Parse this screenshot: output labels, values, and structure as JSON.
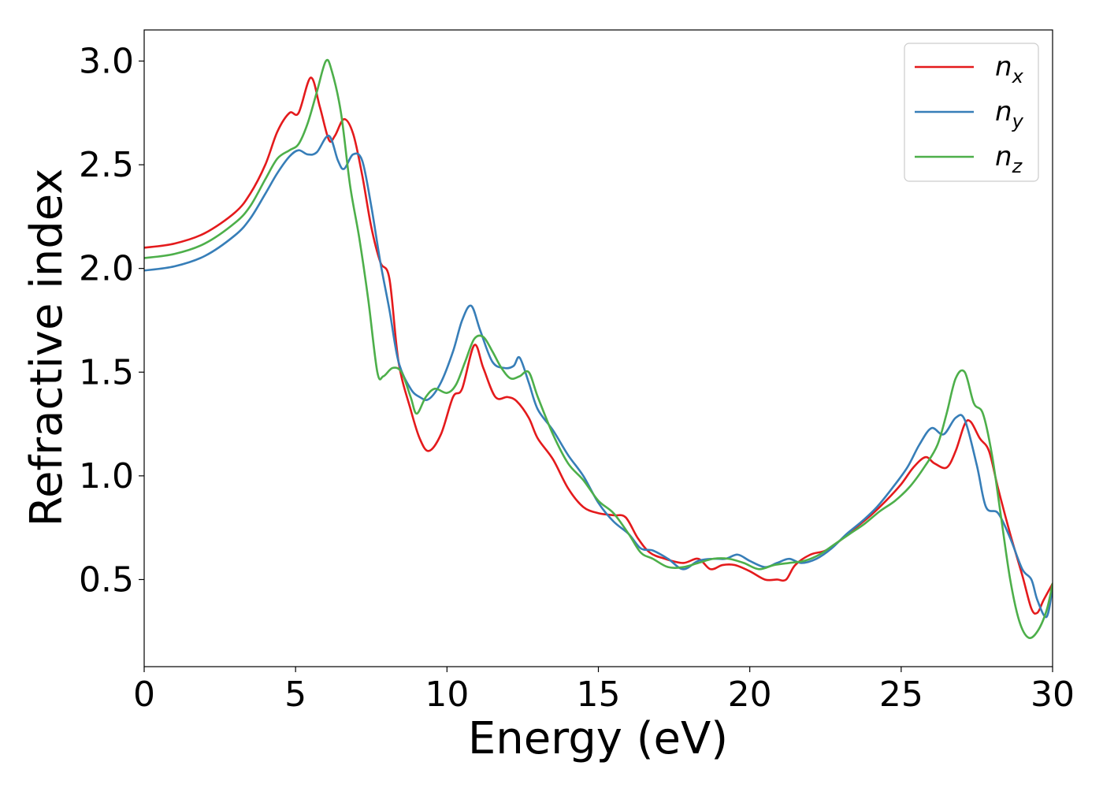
{
  "chart_data": {
    "type": "line",
    "xlabel": "Energy (eV)",
    "ylabel": "Refractive index",
    "xlim": [
      0,
      30
    ],
    "ylim": [
      0.08,
      3.15
    ],
    "xticks": [
      0,
      5,
      10,
      15,
      20,
      25,
      30
    ],
    "xtick_labels": [
      "0",
      "5",
      "10",
      "15",
      "20",
      "25",
      "30"
    ],
    "yticks": [
      0.5,
      1.0,
      1.5,
      2.0,
      2.5,
      3.0
    ],
    "ytick_labels": [
      "0.5",
      "1.0",
      "1.5",
      "2.0",
      "2.5",
      "3.0"
    ],
    "grid": false,
    "legend_position": "top-right",
    "series": [
      {
        "name": "n",
        "subscript": "x",
        "color": "#e41a1c",
        "x": [
          0,
          1,
          2,
          3,
          3.5,
          4,
          4.4,
          4.8,
          5.1,
          5.5,
          5.8,
          6.1,
          6.3,
          6.6,
          6.9,
          7.2,
          7.5,
          7.8,
          8.1,
          8.4,
          8.8,
          9.1,
          9.4,
          9.8,
          10.2,
          10.5,
          10.9,
          11.2,
          11.6,
          12.0,
          12.3,
          12.7,
          13.0,
          13.5,
          14.0,
          14.5,
          15.0,
          15.5,
          15.9,
          16.3,
          16.7,
          17.2,
          17.8,
          18.3,
          18.7,
          19.1,
          19.5,
          20.0,
          20.5,
          20.9,
          21.2,
          21.5,
          22.0,
          22.5,
          23.0,
          23.5,
          24.0,
          24.5,
          25.0,
          25.4,
          25.8,
          26.1,
          26.5,
          26.8,
          27.1,
          27.3,
          27.6,
          27.9,
          28.2,
          28.6,
          29.0,
          29.3,
          29.5,
          29.7,
          30.0
        ],
        "y": [
          2.1,
          2.12,
          2.17,
          2.27,
          2.36,
          2.5,
          2.66,
          2.75,
          2.75,
          2.92,
          2.78,
          2.62,
          2.64,
          2.72,
          2.65,
          2.45,
          2.2,
          2.03,
          1.95,
          1.55,
          1.32,
          1.18,
          1.12,
          1.2,
          1.38,
          1.42,
          1.63,
          1.52,
          1.38,
          1.38,
          1.36,
          1.28,
          1.18,
          1.08,
          0.94,
          0.85,
          0.82,
          0.81,
          0.8,
          0.7,
          0.63,
          0.6,
          0.58,
          0.6,
          0.55,
          0.57,
          0.57,
          0.54,
          0.5,
          0.5,
          0.5,
          0.57,
          0.62,
          0.64,
          0.69,
          0.75,
          0.81,
          0.88,
          0.96,
          1.04,
          1.09,
          1.06,
          1.04,
          1.12,
          1.25,
          1.26,
          1.18,
          1.12,
          0.94,
          0.72,
          0.52,
          0.36,
          0.34,
          0.4,
          0.48
        ]
      },
      {
        "name": "n",
        "subscript": "y",
        "color": "#377eb8",
        "x": [
          0,
          1,
          2,
          3,
          3.5,
          4,
          4.4,
          4.8,
          5.1,
          5.4,
          5.7,
          6.1,
          6.4,
          6.6,
          6.9,
          7.2,
          7.5,
          7.8,
          8.1,
          8.4,
          8.8,
          9.1,
          9.4,
          9.8,
          10.2,
          10.5,
          10.8,
          11.1,
          11.5,
          11.9,
          12.2,
          12.4,
          12.7,
          13.0,
          13.5,
          14.0,
          14.5,
          15.0,
          15.5,
          16.0,
          16.4,
          16.8,
          17.3,
          17.8,
          18.3,
          18.8,
          19.2,
          19.6,
          20.0,
          20.5,
          20.9,
          21.3,
          21.7,
          22.2,
          22.7,
          23.2,
          23.7,
          24.2,
          24.7,
          25.2,
          25.6,
          26.0,
          26.4,
          26.8,
          27.1,
          27.5,
          27.8,
          28.2,
          28.6,
          29.0,
          29.3,
          29.5,
          29.8,
          30.0
        ],
        "y": [
          1.99,
          2.01,
          2.06,
          2.16,
          2.24,
          2.36,
          2.46,
          2.54,
          2.57,
          2.55,
          2.56,
          2.64,
          2.52,
          2.48,
          2.55,
          2.52,
          2.3,
          2.03,
          1.8,
          1.55,
          1.42,
          1.38,
          1.37,
          1.45,
          1.6,
          1.75,
          1.82,
          1.7,
          1.55,
          1.52,
          1.53,
          1.57,
          1.45,
          1.32,
          1.22,
          1.1,
          1.0,
          0.87,
          0.78,
          0.72,
          0.65,
          0.64,
          0.6,
          0.55,
          0.59,
          0.6,
          0.6,
          0.62,
          0.59,
          0.56,
          0.58,
          0.6,
          0.58,
          0.6,
          0.65,
          0.72,
          0.78,
          0.85,
          0.94,
          1.04,
          1.15,
          1.23,
          1.2,
          1.28,
          1.27,
          1.05,
          0.85,
          0.82,
          0.7,
          0.55,
          0.5,
          0.4,
          0.32,
          0.46
        ]
      },
      {
        "name": "n",
        "subscript": "z",
        "color": "#4daf4a",
        "x": [
          0,
          1,
          2,
          3,
          3.5,
          4,
          4.4,
          4.8,
          5.1,
          5.4,
          5.7,
          6.0,
          6.2,
          6.5,
          6.8,
          7.1,
          7.4,
          7.7,
          7.9,
          8.2,
          8.5,
          8.8,
          9.0,
          9.3,
          9.6,
          10.0,
          10.3,
          10.6,
          10.9,
          11.2,
          11.5,
          11.8,
          12.1,
          12.4,
          12.7,
          13.0,
          13.5,
          14.0,
          14.5,
          15.0,
          15.5,
          16.0,
          16.4,
          16.8,
          17.3,
          17.8,
          18.3,
          18.8,
          19.3,
          19.8,
          20.3,
          20.8,
          21.3,
          21.8,
          22.3,
          22.8,
          23.3,
          23.8,
          24.3,
          24.8,
          25.3,
          25.8,
          26.2,
          26.5,
          26.8,
          27.1,
          27.4,
          27.7,
          28.0,
          28.3,
          28.6,
          28.9,
          29.2,
          29.5,
          29.8,
          30.0
        ],
        "y": [
          2.05,
          2.07,
          2.12,
          2.22,
          2.3,
          2.43,
          2.53,
          2.57,
          2.6,
          2.7,
          2.85,
          3.0,
          2.95,
          2.75,
          2.4,
          2.15,
          1.85,
          1.5,
          1.48,
          1.52,
          1.5,
          1.38,
          1.3,
          1.38,
          1.42,
          1.4,
          1.44,
          1.55,
          1.66,
          1.67,
          1.6,
          1.52,
          1.47,
          1.48,
          1.5,
          1.38,
          1.2,
          1.06,
          0.98,
          0.88,
          0.82,
          0.72,
          0.63,
          0.6,
          0.56,
          0.56,
          0.58,
          0.6,
          0.6,
          0.58,
          0.55,
          0.57,
          0.58,
          0.59,
          0.62,
          0.67,
          0.72,
          0.77,
          0.83,
          0.88,
          0.95,
          1.05,
          1.15,
          1.3,
          1.47,
          1.5,
          1.35,
          1.3,
          1.1,
          0.8,
          0.5,
          0.3,
          0.22,
          0.25,
          0.35,
          0.48
        ]
      }
    ]
  }
}
